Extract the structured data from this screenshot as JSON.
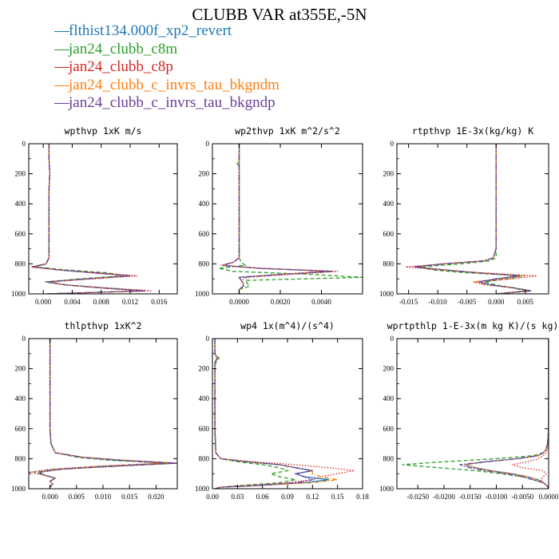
{
  "title": "CLUBB VAR at355E,-5N",
  "legend": [
    {
      "name": "flthist134.000f_xp2_revert",
      "color": "#1f77b4",
      "dash": "none"
    },
    {
      "name": "jan24_clubb_c8m",
      "color": "#2ca02c",
      "dash": "5,3"
    },
    {
      "name": "jan24_clubb_c8p",
      "color": "#d62728",
      "dash": "1.5,2"
    },
    {
      "name": "jan24_clubb_c_invrs_tau_bkgndm",
      "color": "#ff7f0e",
      "dash": "5,2,1,2"
    },
    {
      "name": "jan24_clubb_c_invrs_tau_bkgndp",
      "color": "#6a3d9a",
      "dash": "7,2,2,2"
    }
  ],
  "legend_marker": "—",
  "chart_data": [
    {
      "type": "line",
      "title": "wpthvp  1xK m/s",
      "ylim": [
        1000,
        0
      ],
      "xlim": [
        -0.002,
        0.0185
      ],
      "xticks": [
        0.0,
        0.004,
        0.008,
        0.012,
        0.016
      ],
      "xtick_labels": [
        "0.000",
        "0.004",
        "0.008",
        "0.012",
        "0.016"
      ],
      "yticks": [
        0,
        200,
        400,
        600,
        800,
        1000
      ],
      "y": [
        0,
        100,
        200,
        300,
        400,
        500,
        600,
        700,
        760,
        800,
        820,
        840,
        860,
        880,
        900,
        920,
        940,
        960,
        980,
        1000
      ],
      "series": [
        {
          "values": [
            0.0008,
            0.0008,
            0.0009,
            0.0008,
            0.0008,
            0.0008,
            0.0008,
            0.0008,
            0.0008,
            0.0004,
            -0.0015,
            0.002,
            0.007,
            0.012,
            0.006,
            0.0005,
            0.003,
            0.008,
            0.014,
            0.0005
          ]
        },
        {
          "values": [
            0.0008,
            0.0008,
            0.0009,
            0.0008,
            0.0008,
            0.0008,
            0.0008,
            0.0008,
            0.0008,
            0.0003,
            -0.001,
            0.003,
            0.009,
            0.011,
            0.005,
            0.0002,
            0.003,
            0.008,
            0.014,
            0.0005
          ]
        },
        {
          "values": [
            0.0008,
            0.0008,
            0.0009,
            0.0008,
            0.0008,
            0.0008,
            0.0008,
            0.0008,
            0.0008,
            0.0004,
            -0.0017,
            0.002,
            0.008,
            0.013,
            0.007,
            0.001,
            0.003,
            0.009,
            0.015,
            0.0005
          ]
        },
        {
          "values": [
            0.0008,
            0.0008,
            0.0009,
            0.0008,
            0.0008,
            0.0008,
            0.0008,
            0.0008,
            0.0008,
            0.0004,
            -0.0015,
            0.002,
            0.007,
            0.012,
            0.006,
            0.0007,
            0.003,
            0.008,
            0.014,
            0.0005
          ]
        },
        {
          "values": [
            0.0008,
            0.0008,
            0.0009,
            0.0008,
            0.0008,
            0.0008,
            0.0008,
            0.0008,
            0.0008,
            0.0004,
            -0.0015,
            0.002,
            0.007,
            0.012,
            0.006,
            0.0005,
            0.003,
            0.008,
            0.014,
            0.0005
          ]
        }
      ]
    },
    {
      "type": "line",
      "title": "wp2thvp  1xK m^2/s^2",
      "ylim": [
        1000,
        0
      ],
      "xlim": [
        -0.0013,
        0.006
      ],
      "xticks": [
        0.0,
        0.002,
        0.004
      ],
      "xtick_labels": [
        "0.0000",
        "0.0020",
        "0.0040"
      ],
      "yticks": [
        0,
        200,
        400,
        600,
        800,
        1000
      ],
      "y": [
        0,
        100,
        130,
        150,
        200,
        400,
        600,
        760,
        790,
        810,
        830,
        850,
        870,
        890,
        910,
        930,
        950,
        970,
        1000
      ],
      "series": [
        {
          "values": [
            0.0,
            0.0,
            0.0,
            0.0,
            0.0,
            0.0,
            0.0,
            0.0,
            -0.0003,
            -0.0008,
            0.001,
            0.0045,
            0.002,
            0.0,
            0.0001,
            0.0002,
            0.0002,
            0.0,
            0.0
          ]
        },
        {
          "values": [
            0.0,
            0.0,
            -0.0001,
            0.0,
            0.0,
            0.0,
            0.0,
            0.0,
            0.0001,
            0.0003,
            -0.001,
            -0.0003,
            0.0035,
            0.006,
            0.0003,
            0.0004,
            0.0005,
            0.0,
            0.0
          ]
        },
        {
          "values": [
            0.0,
            0.0,
            0.0,
            0.0,
            0.0,
            0.0,
            0.0,
            0.0,
            -0.0003,
            -0.0009,
            0.001,
            0.0048,
            0.0025,
            0.0004,
            0.0001,
            0.0002,
            0.0002,
            0.0,
            0.0
          ]
        },
        {
          "values": [
            0.0,
            0.0,
            0.0,
            0.0,
            0.0,
            0.0,
            0.0,
            0.0,
            -0.0003,
            -0.0008,
            0.001,
            0.0042,
            0.002,
            0.0,
            0.0001,
            0.0002,
            0.0002,
            0.0,
            0.0
          ]
        },
        {
          "values": [
            0.0,
            0.0,
            0.0,
            0.0,
            0.0,
            0.0,
            0.0,
            0.0,
            -0.0003,
            -0.0008,
            0.001,
            0.0045,
            0.002,
            0.0,
            0.0001,
            0.0002,
            0.0002,
            0.0,
            0.0
          ]
        }
      ]
    },
    {
      "type": "line",
      "title": "rtpthvp  1E-3x(kg/kg) K",
      "ylim": [
        1000,
        0
      ],
      "xlim": [
        -0.017,
        0.009
      ],
      "xticks": [
        -0.015,
        -0.01,
        -0.005,
        0.0,
        0.005
      ],
      "xtick_labels": [
        "-0.015",
        "-0.010",
        "-0.005",
        "0.000",
        "0.005"
      ],
      "yticks": [
        0,
        200,
        400,
        600,
        800,
        1000
      ],
      "y": [
        0,
        200,
        400,
        600,
        700,
        760,
        780,
        800,
        820,
        840,
        860,
        880,
        900,
        920,
        940,
        960,
        980,
        1000
      ],
      "series": [
        {
          "values": [
            0.0,
            0.0,
            0.0,
            0.0,
            0.0,
            -0.0005,
            -0.002,
            -0.009,
            -0.014,
            -0.009,
            -0.003,
            0.004,
            0.0,
            -0.003,
            -0.001,
            0.003,
            0.006,
            0.0
          ]
        },
        {
          "values": [
            0.0,
            0.0,
            0.0,
            0.0,
            0.0,
            0.0,
            -0.001,
            -0.006,
            -0.013,
            -0.011,
            -0.005,
            0.005,
            0.002,
            -0.002,
            0.0,
            0.003,
            0.005,
            0.0
          ]
        },
        {
          "values": [
            0.0,
            0.0,
            0.0,
            0.0,
            0.0,
            -0.0005,
            -0.002,
            -0.009,
            -0.0155,
            -0.01,
            -0.002,
            0.007,
            0.003,
            -0.004,
            -0.002,
            0.003,
            0.006,
            0.0
          ]
        },
        {
          "values": [
            0.0,
            0.0,
            0.0,
            0.0,
            0.0,
            -0.0005,
            -0.002,
            -0.009,
            -0.014,
            -0.009,
            -0.003,
            0.005,
            0.001,
            -0.004,
            -0.001,
            0.003,
            0.006,
            0.0
          ]
        },
        {
          "values": [
            0.0,
            0.0,
            0.0,
            0.0,
            0.0,
            -0.0005,
            -0.002,
            -0.009,
            -0.014,
            -0.009,
            -0.003,
            0.004,
            0.0,
            -0.003,
            -0.001,
            0.003,
            0.006,
            0.0
          ]
        }
      ]
    },
    {
      "type": "line",
      "title": "thlpthvp  1xK^2",
      "ylim": [
        1000,
        0
      ],
      "xlim": [
        -0.004,
        0.024
      ],
      "xticks": [
        0.0,
        0.005,
        0.01,
        0.015,
        0.02
      ],
      "xtick_labels": [
        "0.000",
        "0.005",
        "0.010",
        "0.015",
        "0.020"
      ],
      "yticks": [
        0,
        200,
        400,
        600,
        800,
        1000
      ],
      "y": [
        0,
        100,
        200,
        400,
        600,
        700,
        760,
        790,
        810,
        830,
        850,
        870,
        890,
        910,
        930,
        950,
        970,
        990,
        1000
      ],
      "series": [
        {
          "values": [
            0.0,
            0.0,
            0.0,
            0.0,
            0.0,
            0.0002,
            0.001,
            0.006,
            0.013,
            0.024,
            0.012,
            0.002,
            -0.002,
            -0.001,
            0.001,
            0.0,
            0.0005,
            0.0,
            0.0
          ]
        },
        {
          "values": [
            0.0,
            0.0,
            0.0,
            0.0,
            0.0,
            0.0002,
            0.001,
            0.005,
            0.011,
            0.022,
            0.01,
            0.001,
            -0.003,
            -0.001,
            0.001,
            0.0,
            0.0005,
            0.0,
            0.0
          ]
        },
        {
          "values": [
            0.0,
            0.0,
            0.0,
            0.0,
            0.0,
            0.0002,
            0.001,
            0.006,
            0.014,
            0.021,
            0.009,
            0.0,
            -0.004,
            -0.001,
            0.001,
            0.0,
            0.0005,
            0.0,
            0.0
          ]
        },
        {
          "values": [
            0.0,
            0.0,
            0.0,
            0.0,
            0.0,
            0.0002,
            0.001,
            0.006,
            0.014,
            0.024,
            0.012,
            0.002,
            -0.002,
            -0.001,
            0.001,
            0.0,
            0.0005,
            0.0,
            0.0
          ]
        },
        {
          "values": [
            0.0,
            0.0,
            0.0,
            0.0,
            0.0,
            0.0002,
            0.001,
            0.006,
            0.013,
            0.024,
            0.012,
            0.002,
            -0.002,
            -0.001,
            0.001,
            0.0,
            0.0005,
            0.0,
            0.0
          ]
        }
      ]
    },
    {
      "type": "line",
      "title": "wp4  1x(m^4)/(s^4)",
      "ylim": [
        1000,
        0
      ],
      "xlim": [
        0.0,
        0.18
      ],
      "xticks": [
        0.0,
        0.03,
        0.06,
        0.09,
        0.12,
        0.15,
        0.18
      ],
      "xtick_labels": [
        "0.00",
        "0.03",
        "0.06",
        "0.09",
        "0.12",
        "0.15",
        "0.18"
      ],
      "yticks": [
        0,
        200,
        400,
        600,
        800,
        1000
      ],
      "y": [
        0,
        100,
        130,
        160,
        200,
        400,
        600,
        760,
        800,
        820,
        840,
        860,
        880,
        900,
        920,
        940,
        960,
        980,
        990,
        1000
      ],
      "series": [
        {
          "values": [
            0.003,
            0.003,
            0.006,
            0.003,
            0.003,
            0.003,
            0.003,
            0.004,
            0.01,
            0.04,
            0.08,
            0.1,
            0.12,
            0.1,
            0.11,
            0.14,
            0.11,
            0.05,
            0.01,
            0.003
          ]
        },
        {
          "values": [
            0.003,
            0.003,
            0.008,
            0.004,
            0.003,
            0.003,
            0.003,
            0.004,
            0.01,
            0.03,
            0.06,
            0.08,
            0.09,
            0.07,
            0.08,
            0.1,
            0.08,
            0.03,
            0.01,
            0.003
          ]
        },
        {
          "values": [
            0.003,
            0.003,
            0.005,
            0.003,
            0.003,
            0.003,
            0.003,
            0.004,
            0.01,
            0.05,
            0.1,
            0.14,
            0.17,
            0.15,
            0.13,
            0.12,
            0.09,
            0.04,
            0.01,
            0.003
          ]
        },
        {
          "values": [
            0.003,
            0.003,
            0.006,
            0.003,
            0.003,
            0.003,
            0.003,
            0.004,
            0.01,
            0.04,
            0.08,
            0.1,
            0.12,
            0.12,
            0.13,
            0.15,
            0.12,
            0.05,
            0.01,
            0.003
          ]
        },
        {
          "values": [
            0.003,
            0.003,
            0.006,
            0.003,
            0.003,
            0.003,
            0.003,
            0.004,
            0.01,
            0.04,
            0.08,
            0.1,
            0.12,
            0.1,
            0.11,
            0.12,
            0.1,
            0.05,
            0.01,
            0.003
          ]
        }
      ]
    },
    {
      "type": "line",
      "title": "wprtpthlp  1-E-3x(m kg K)/(s kg)",
      "ylim": [
        1000,
        0
      ],
      "xlim": [
        -0.029,
        0.0
      ],
      "xticks": [
        -0.025,
        -0.02,
        -0.015,
        -0.01,
        -0.005,
        0.0
      ],
      "xtick_labels": [
        "-0.0250",
        "-0.0200",
        "-0.0150",
        "-0.0100",
        "-0.0050",
        "0.0000"
      ],
      "yticks": [
        0,
        200,
        400,
        600,
        800,
        1000
      ],
      "y": [
        0,
        200,
        400,
        600,
        700,
        740,
        760,
        780,
        800,
        820,
        840,
        860,
        880,
        900,
        920,
        940,
        960,
        980,
        1000
      ],
      "series": [
        {
          "values": [
            0.0,
            0.0,
            0.0,
            0.0,
            -0.0002,
            -0.0005,
            -0.001,
            -0.002,
            -0.006,
            -0.012,
            -0.016,
            -0.014,
            -0.011,
            -0.007,
            -0.004,
            -0.002,
            -0.001,
            -0.0003,
            0.0
          ]
        },
        {
          "values": [
            0.0,
            0.0,
            0.0,
            0.0,
            -0.0002,
            -0.0005,
            -0.001,
            -0.003,
            -0.01,
            -0.02,
            -0.028,
            -0.021,
            -0.014,
            -0.009,
            -0.005,
            -0.003,
            -0.001,
            -0.0003,
            0.0
          ]
        },
        {
          "values": [
            0.0,
            0.0,
            0.0,
            0.0,
            -0.0001,
            -0.0002,
            -0.0005,
            -0.001,
            -0.002,
            -0.004,
            -0.007,
            -0.005,
            -0.001,
            -0.0005,
            -0.001,
            -0.0015,
            -0.001,
            -0.0002,
            0.0
          ]
        },
        {
          "values": [
            0.0,
            0.0,
            0.0,
            0.0,
            -0.0002,
            -0.0005,
            -0.001,
            -0.002,
            -0.006,
            -0.012,
            -0.016,
            -0.014,
            -0.011,
            -0.007,
            -0.004,
            -0.002,
            -0.001,
            -0.0003,
            0.0
          ]
        },
        {
          "values": [
            0.0,
            0.0,
            0.0,
            0.0,
            -0.0002,
            -0.0005,
            -0.001,
            -0.002,
            -0.006,
            -0.012,
            -0.017,
            -0.015,
            -0.012,
            -0.008,
            -0.005,
            -0.003,
            -0.001,
            -0.0003,
            0.0
          ]
        }
      ]
    }
  ]
}
